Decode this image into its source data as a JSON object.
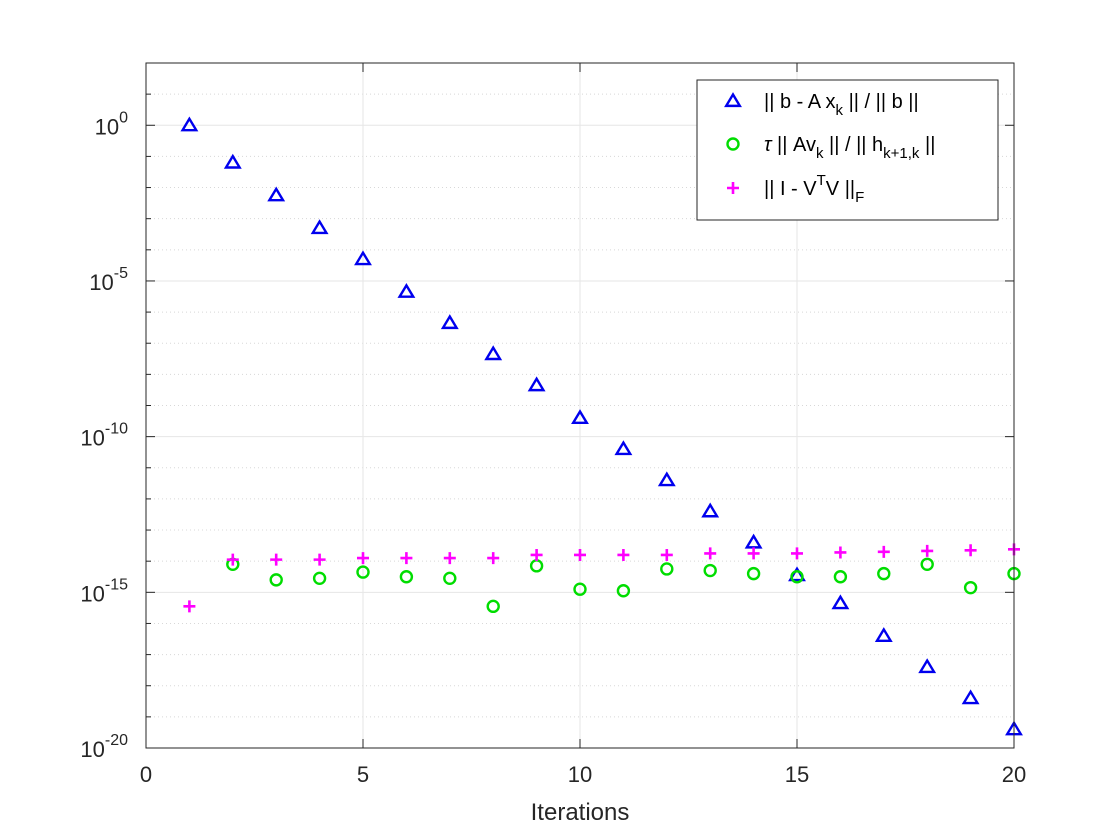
{
  "chart_data": {
    "type": "scatter",
    "title": "",
    "xlabel": "Iterations",
    "ylabel": "",
    "xlim": [
      0,
      20
    ],
    "ylim_log10": [
      -20,
      2
    ],
    "y_scale": "log",
    "grid": true,
    "x_ticks": [
      {
        "value": 0,
        "label": "0"
      },
      {
        "value": 5,
        "label": "5"
      },
      {
        "value": 10,
        "label": "10"
      },
      {
        "value": 15,
        "label": "15"
      },
      {
        "value": 20,
        "label": "20"
      }
    ],
    "y_ticks": [
      {
        "exp": 0,
        "base": "10",
        "sup": "0"
      },
      {
        "exp": -5,
        "base": "10",
        "sup": "-5"
      },
      {
        "exp": -10,
        "base": "10",
        "sup": "-10"
      },
      {
        "exp": -15,
        "base": "10",
        "sup": "-15"
      },
      {
        "exp": -20,
        "base": "10",
        "sup": "-20"
      }
    ],
    "legend_position": "top-right",
    "series": [
      {
        "name": "|| b - A x_k || / || b ||",
        "legend_parts": [
          {
            "t": "|| b - A x"
          },
          {
            "t": "k",
            "sub": true
          },
          {
            "t": " || / || b ||"
          }
        ],
        "marker": "triangle",
        "color": "#0000ee",
        "x": [
          1,
          2,
          3,
          4,
          5,
          6,
          7,
          8,
          9,
          10,
          11,
          12,
          13,
          14,
          15,
          16,
          17,
          18,
          19,
          20
        ],
        "log10_y": [
          0,
          -1.2,
          -2.25,
          -3.3,
          -4.3,
          -5.35,
          -6.35,
          -7.35,
          -8.35,
          -9.4,
          -10.4,
          -11.4,
          -12.4,
          -13.4,
          -14.45,
          -15.35,
          -16.4,
          -17.4,
          -18.4,
          -19.4
        ]
      },
      {
        "name": "τ || Av_k || / || h_{k+1,k} ||",
        "legend_parts": [
          {
            "t": "τ",
            "italic": true
          },
          {
            "t": " || Av"
          },
          {
            "t": "k",
            "sub": true
          },
          {
            "t": " || / || h"
          },
          {
            "t": "k+1,k",
            "sub": true
          },
          {
            "t": " ||"
          }
        ],
        "marker": "circle",
        "color": "#00dd00",
        "x": [
          2,
          3,
          4,
          5,
          6,
          7,
          8,
          9,
          10,
          11,
          12,
          13,
          14,
          15,
          16,
          17,
          18,
          19,
          20
        ],
        "log10_y": [
          -14.1,
          -14.6,
          -14.55,
          -14.35,
          -14.5,
          -14.55,
          -15.45,
          -14.15,
          -14.9,
          -14.95,
          -14.25,
          -14.3,
          -14.4,
          -14.5,
          -14.5,
          -14.4,
          -14.1,
          -14.85,
          -14.4
        ]
      },
      {
        "name": "|| I - V^T V ||_F",
        "legend_parts": [
          {
            "t": "|| I - V"
          },
          {
            "t": "T",
            "sup": true
          },
          {
            "t": "V ||"
          },
          {
            "t": "F",
            "sub": true
          }
        ],
        "marker": "plus",
        "color": "#ff00ff",
        "x": [
          1,
          2,
          3,
          4,
          5,
          6,
          7,
          8,
          9,
          10,
          11,
          12,
          13,
          14,
          15,
          16,
          17,
          18,
          19,
          20
        ],
        "log10_y": [
          -15.45,
          -13.95,
          -13.95,
          -13.95,
          -13.9,
          -13.9,
          -13.9,
          -13.9,
          -13.8,
          -13.8,
          -13.8,
          -13.8,
          -13.75,
          -13.75,
          -13.75,
          -13.72,
          -13.7,
          -13.67,
          -13.65,
          -13.62
        ]
      }
    ]
  }
}
